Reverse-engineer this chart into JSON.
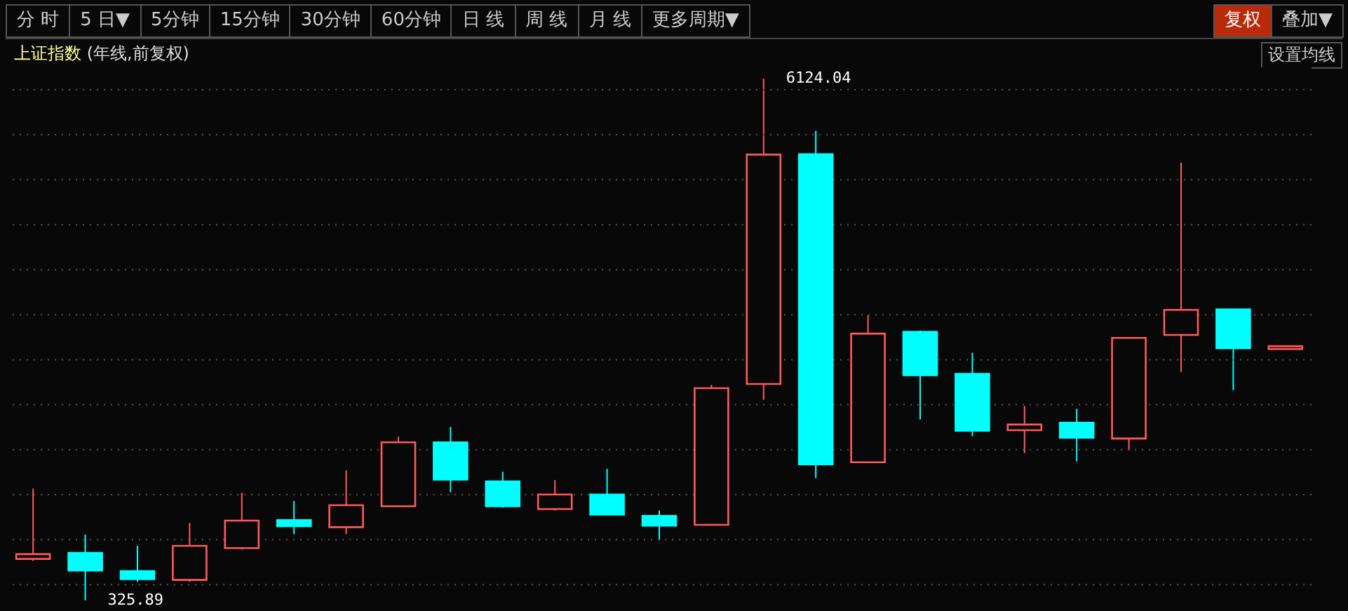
{
  "chart_data": {
    "type": "candlestick",
    "title": "上证指数",
    "subtitle": "(年线,前复权)",
    "categories": [
      null,
      null,
      null,
      null,
      null,
      null,
      null,
      null,
      null,
      null,
      null,
      null,
      null,
      null,
      null,
      null,
      null,
      null,
      null,
      null,
      null,
      null,
      null,
      null,
      null
    ],
    "ohlc": [
      [
        787,
        1569,
        765,
        839
      ],
      [
        854,
        1056,
        325.89,
        657
      ],
      [
        652,
        932,
        532,
        563
      ],
      [
        553,
        1186,
        532,
        932
      ],
      [
        906,
        1523,
        890,
        1212
      ],
      [
        1217,
        1430,
        1062,
        1150
      ],
      [
        1139,
        1771,
        1062,
        1383
      ],
      [
        1372,
        2145,
        1372,
        2082
      ],
      [
        2082,
        2254,
        1527,
        1668
      ],
      [
        1647,
        1756,
        1356,
        1372
      ],
      [
        1341,
        1663,
        1325,
        1502
      ],
      [
        1502,
        1787,
        1279,
        1279
      ],
      [
        1264,
        1326,
        1000,
        1156
      ],
      [
        1166,
        2720,
        1166,
        2684
      ],
      [
        2731,
        6124.04,
        2553,
        5280
      ],
      [
        5285,
        5544,
        1683,
        1838
      ],
      [
        1860,
        3492,
        1860,
        3290
      ],
      [
        3310,
        3326,
        2336,
        2829
      ],
      [
        2844,
        3077,
        2149,
        2212
      ],
      [
        2217,
        2487,
        1963,
        2280
      ],
      [
        2300,
        2455,
        1869,
        2134
      ],
      [
        2124,
        3243,
        1993,
        3243
      ],
      [
        3275,
        5191,
        2864,
        3554
      ],
      [
        3559,
        3559,
        2662,
        3128
      ],
      [
        3119,
        3150,
        3119,
        3150
      ]
    ],
    "colors": [
      "#ff5a5a",
      "#00ffff",
      "#00ffff",
      "#ff5a5a",
      "#ff5a5a",
      "#00ffff",
      "#ff5a5a",
      "#ff5a5a",
      "#00ffff",
      "#00ffff",
      "#ff5a5a",
      "#00ffff",
      "#00ffff",
      "#ff5a5a",
      "#ff5a5a",
      "#00ffff",
      "#ff5a5a",
      "#00ffff",
      "#00ffff",
      "#ff5a5a",
      "#00ffff",
      "#ff5a5a",
      "#ff5a5a",
      "#00ffff",
      "#ff5a5a"
    ],
    "ylim": [
      270,
      6250
    ],
    "yticks": [
      {
        "value": 500,
        "label": null
      },
      {
        "value": 1000,
        "label": null
      },
      {
        "value": 1500,
        "label": null
      },
      {
        "value": 2000,
        "label": null
      },
      {
        "value": 2500,
        "label": null
      },
      {
        "value": 3000,
        "label": null
      },
      {
        "value": 3500,
        "label": null
      },
      {
        "value": 4000,
        "label": null
      },
      {
        "value": 4500,
        "label": null
      },
      {
        "value": 5000,
        "label": null
      },
      {
        "value": 5500,
        "label": null
      },
      {
        "value": 6000,
        "label": null
      }
    ],
    "grid": "y",
    "annotations": [
      "分 时",
      "5 日▼",
      "5分钟",
      "15分钟",
      "30分钟",
      "60分钟",
      "日 线",
      "周 线",
      "月 线",
      "更多周期▼",
      "复权",
      "叠加▼",
      "设置均线",
      "6124.04",
      "325.89"
    ]
  }
}
